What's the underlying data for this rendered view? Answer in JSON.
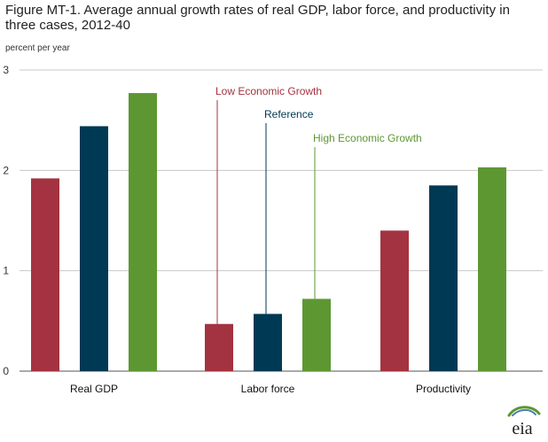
{
  "title": "Figure MT-1. Average annual growth rates of real GDP, labor force, and productivity in three cases, 2012-40",
  "unit_label": "percent per year",
  "logo_text": "eia",
  "chart_data": {
    "type": "bar",
    "title": "Figure MT-1. Average annual growth rates of real GDP, labor force, and productivity in three cases, 2012-40",
    "ylabel": "percent per year",
    "xlabel": "",
    "ylim": [
      0,
      3
    ],
    "yticks": [
      0,
      1,
      2,
      3
    ],
    "grid": true,
    "categories": [
      "Real GDP",
      "Labor force",
      "Productivity"
    ],
    "series": [
      {
        "name": "Low Economic Growth",
        "color": "#a33340",
        "values": [
          1.92,
          0.47,
          1.4
        ]
      },
      {
        "name": "Reference",
        "color": "#003953",
        "values": [
          2.44,
          0.57,
          1.85
        ]
      },
      {
        "name": "High Economic Growth",
        "color": "#5d9732",
        "values": [
          2.77,
          0.72,
          2.03
        ]
      }
    ],
    "legend_placement": "annotations above Labor force bars"
  }
}
